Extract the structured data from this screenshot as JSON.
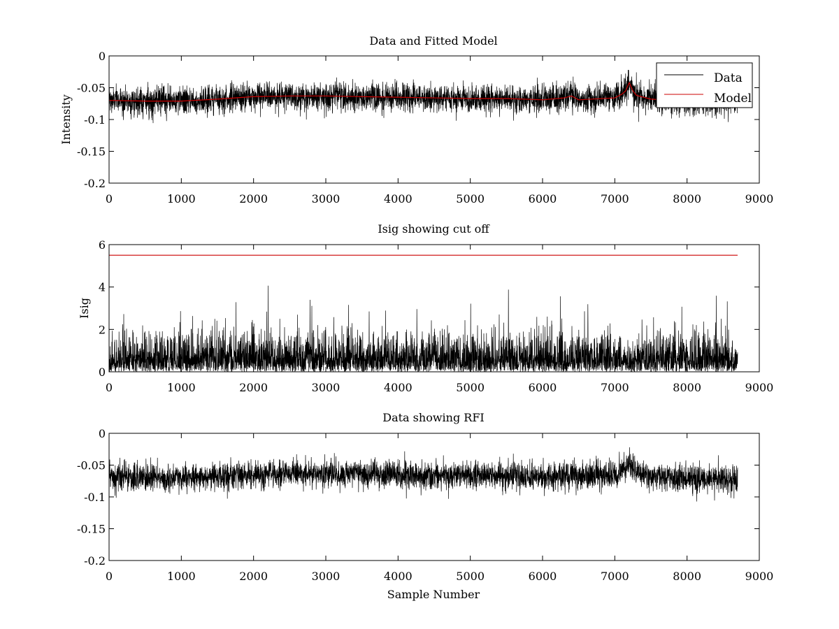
{
  "chart_data": [
    {
      "type": "line",
      "title": "Data and Fitted Model",
      "xlabel": "",
      "ylabel": "Intensity",
      "xlim": [
        0,
        9000
      ],
      "ylim": [
        -0.2,
        0
      ],
      "xticks": [
        0,
        1000,
        2000,
        3000,
        4000,
        5000,
        6000,
        7000,
        8000,
        9000
      ],
      "xtick_labels": [
        "0",
        "1000",
        "2000",
        "3000",
        "4000",
        "5000",
        "6000",
        "7000",
        "8000",
        "9000"
      ],
      "yticks": [
        -0.2,
        -0.15,
        -0.1,
        -0.05,
        0
      ],
      "ytick_labels": [
        "-0.2",
        "-0.15",
        "-0.1",
        "-0.05",
        "0"
      ],
      "legend": {
        "position": "top-right",
        "entries": [
          "Data",
          "Model"
        ]
      },
      "grid": false,
      "series": [
        {
          "name": "Data",
          "color": "#000000",
          "kind": "noisy",
          "n_samples": 8700,
          "baseline": {
            "x": [
              0,
              500,
              1000,
              1500,
              2000,
              2500,
              3000,
              3500,
              4000,
              4500,
              5000,
              5500,
              6000,
              6400,
              6500,
              7000,
              7150,
              7200,
              7300,
              7500,
              8000,
              8500,
              8700
            ],
            "y": [
              -0.07,
              -0.071,
              -0.071,
              -0.068,
              -0.064,
              -0.063,
              -0.063,
              -0.064,
              -0.065,
              -0.066,
              -0.067,
              -0.067,
              -0.069,
              -0.063,
              -0.069,
              -0.066,
              -0.055,
              -0.042,
              -0.062,
              -0.068,
              -0.071,
              -0.073,
              -0.074
            ]
          },
          "noise_amplitude": 0.011,
          "y_range": [
            -0.118,
            -0.022
          ]
        },
        {
          "name": "Model",
          "color": "#cc0000",
          "x": [
            0,
            500,
            1000,
            1500,
            2000,
            2500,
            3000,
            3500,
            4000,
            4500,
            5000,
            5500,
            6000,
            6300,
            6400,
            6500,
            7000,
            7100,
            7150,
            7200,
            7250,
            7300,
            7500,
            8000,
            8500,
            8700
          ],
          "y": [
            -0.07,
            -0.071,
            -0.071,
            -0.068,
            -0.064,
            -0.063,
            -0.063,
            -0.064,
            -0.065,
            -0.066,
            -0.067,
            -0.067,
            -0.069,
            -0.066,
            -0.063,
            -0.069,
            -0.066,
            -0.06,
            -0.055,
            -0.042,
            -0.055,
            -0.062,
            -0.068,
            -0.071,
            -0.073,
            -0.074
          ]
        }
      ]
    },
    {
      "type": "line",
      "title": "Isig showing cut off",
      "xlabel": "",
      "ylabel": "Isig",
      "xlim": [
        0,
        9000
      ],
      "ylim": [
        0,
        6
      ],
      "xticks": [
        0,
        1000,
        2000,
        3000,
        4000,
        5000,
        6000,
        7000,
        8000,
        9000
      ],
      "xtick_labels": [
        "0",
        "1000",
        "2000",
        "3000",
        "4000",
        "5000",
        "6000",
        "7000",
        "8000",
        "9000"
      ],
      "yticks": [
        0,
        2,
        4,
        6
      ],
      "ytick_labels": [
        "0",
        "2",
        "4",
        "6"
      ],
      "grid": false,
      "series": [
        {
          "color": "#000000",
          "kind": "noisy-positive",
          "n_samples": 8700,
          "typical_max": 2.5,
          "peak_max": 4.2
        },
        {
          "color": "#cc0000",
          "x": [
            0,
            8700
          ],
          "y": [
            5.5,
            5.5
          ]
        }
      ]
    },
    {
      "type": "line",
      "title": "Data showing RFI",
      "xlabel": "Sample Number",
      "ylabel": "",
      "xlim": [
        0,
        9000
      ],
      "ylim": [
        -0.2,
        0
      ],
      "xticks": [
        0,
        1000,
        2000,
        3000,
        4000,
        5000,
        6000,
        7000,
        8000,
        9000
      ],
      "xtick_labels": [
        "0",
        "1000",
        "2000",
        "3000",
        "4000",
        "5000",
        "6000",
        "7000",
        "8000",
        "9000"
      ],
      "yticks": [
        -0.2,
        -0.15,
        -0.1,
        -0.05,
        0
      ],
      "ytick_labels": [
        "-0.2",
        "-0.15",
        "-0.1",
        "-0.05",
        "0"
      ],
      "grid": false,
      "series": [
        {
          "color": "#000000",
          "kind": "noisy",
          "n_samples": 8700,
          "baseline": {
            "x": [
              0,
              500,
              1000,
              1500,
              2000,
              2500,
              3000,
              3500,
              4000,
              4500,
              5000,
              5500,
              6000,
              6400,
              6500,
              7000,
              7150,
              7200,
              7300,
              7500,
              8000,
              8500,
              8700
            ],
            "y": [
              -0.07,
              -0.071,
              -0.071,
              -0.068,
              -0.064,
              -0.063,
              -0.063,
              -0.064,
              -0.065,
              -0.066,
              -0.067,
              -0.067,
              -0.069,
              -0.063,
              -0.069,
              -0.066,
              -0.055,
              -0.045,
              -0.062,
              -0.068,
              -0.071,
              -0.073,
              -0.074
            ]
          },
          "noise_amplitude": 0.011,
          "y_range": [
            -0.118,
            -0.022
          ]
        }
      ]
    }
  ]
}
